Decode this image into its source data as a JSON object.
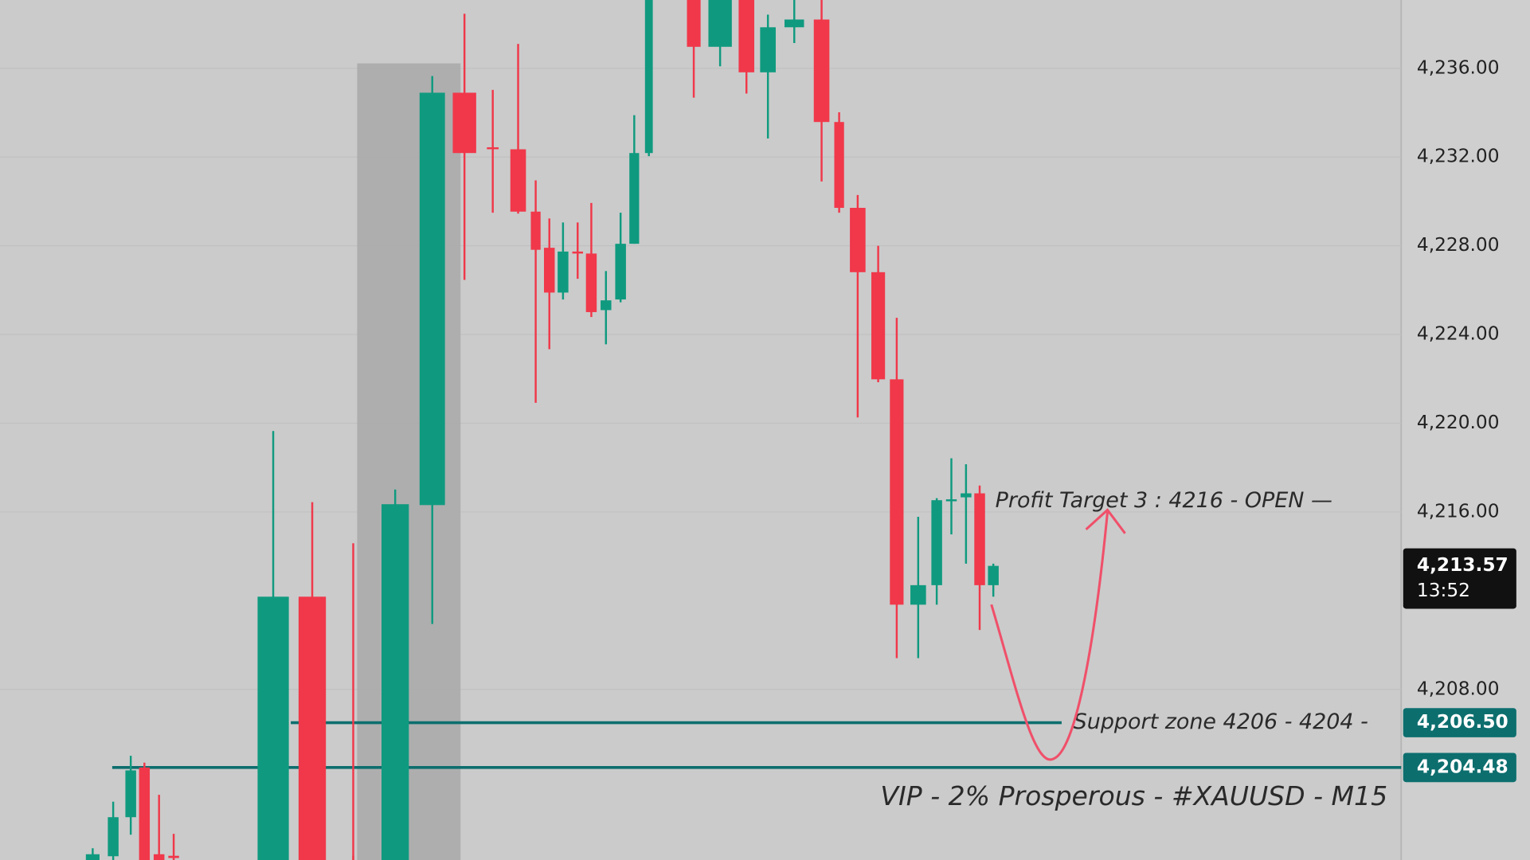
{
  "chart_data": {
    "type": "candlestick",
    "title": "VIP - 2% Prosperous - #XAUUSD - M15",
    "up_color": "#0f9a7f",
    "down_color": "#f0384a",
    "open": [
      4200.31,
      4200.48,
      4202.24,
      4204.48,
      4200.57,
      4200.5,
      4200.31,
      4212.18,
      4200.5,
      4200.31,
      4216.31,
      4234.9,
      4232.44,
      4232.35,
      4229.54,
      4227.91,
      4225.89,
      4227.74,
      4227.65,
      4225.1,
      4225.58,
      4228.09,
      4232.18,
      4239.6,
      4236.97,
      4239.4,
      4235.82,
      4237.85,
      4238.2,
      4233.58,
      4229.71,
      4226.81,
      4221.98,
      4211.82,
      4212.7,
      4216.53,
      4216.66,
      4216.84,
      4212.7
    ],
    "high": [
      4200.84,
      4202.94,
      4205.01,
      4204.7,
      4203.25,
      4201.49,
      4219.65,
      4216.44,
      4214.59,
      4217.01,
      4235.65,
      4238.46,
      4235.03,
      4237.1,
      4230.95,
      4229.23,
      4229.05,
      4229.05,
      4229.93,
      4226.86,
      4229.49,
      4233.89,
      4240.2,
      4240.2,
      4240.2,
      4240.2,
      4238.42,
      4239.3,
      4239.3,
      4234.02,
      4230.29,
      4228.0,
      4224.75,
      4215.78,
      4216.62,
      4218.42,
      4218.15,
      4217.19,
      4213.67
    ],
    "low": [
      4200.31,
      4200.31,
      4201.45,
      4200.31,
      4200.31,
      4200.31,
      4200.31,
      4200.31,
      4200.31,
      4200.31,
      4210.95,
      4226.46,
      4229.49,
      4229.45,
      4220.92,
      4223.34,
      4225.58,
      4226.51,
      4224.79,
      4223.56,
      4225.45,
      4228.09,
      4232.04,
      4234.68,
      4236.09,
      4234.86,
      4232.84,
      4237.14,
      4230.9,
      4229.49,
      4220.26,
      4221.85,
      4209.41,
      4209.41,
      4211.82,
      4214.99,
      4213.67,
      4210.68,
      4212.18
    ],
    "close": [
      4200.57,
      4202.24,
      4204.35,
      4200.31,
      4200.31,
      4200.4,
      4212.18,
      4200.31,
      4200.31,
      4216.35,
      4234.9,
      4232.18,
      4232.4,
      4229.54,
      4227.82,
      4225.89,
      4227.74,
      4227.65,
      4225.01,
      4225.54,
      4228.09,
      4232.18,
      4239.6,
      4236.97,
      4239.5,
      4235.82,
      4237.85,
      4238.2,
      4233.58,
      4229.71,
      4226.81,
      4221.98,
      4211.82,
      4212.7,
      4216.53,
      4216.57,
      4216.84,
      4212.7,
      4213.57
    ],
    "ylim": [
      4200.31,
      4239.08
    ],
    "yticks": [
      {
        "value": 4208,
        "label": "4,208.00"
      },
      {
        "value": 4216,
        "label": "4,216.00"
      },
      {
        "value": 4220,
        "label": "4,220.00"
      },
      {
        "value": 4224,
        "label": "4,224.00"
      },
      {
        "value": 4228,
        "label": "4,228.00"
      },
      {
        "value": 4232,
        "label": "4,232.00"
      },
      {
        "value": 4236,
        "label": "4,236.00"
      }
    ],
    "grid": true,
    "last_price": {
      "value": 4213.57,
      "label": "4,213.57",
      "countdown": "13:52"
    },
    "levels": [
      {
        "value": 4206.5,
        "label": "4,206.50",
        "text": "Support zone 4206  - 4204 -",
        "color": "#0d6e6e"
      },
      {
        "value": 4204.48,
        "label": "4,204.48",
        "color": "#0d6e6e"
      }
    ],
    "annotations": [
      "Profit Target 3 : 4216 - OPEN —"
    ]
  }
}
